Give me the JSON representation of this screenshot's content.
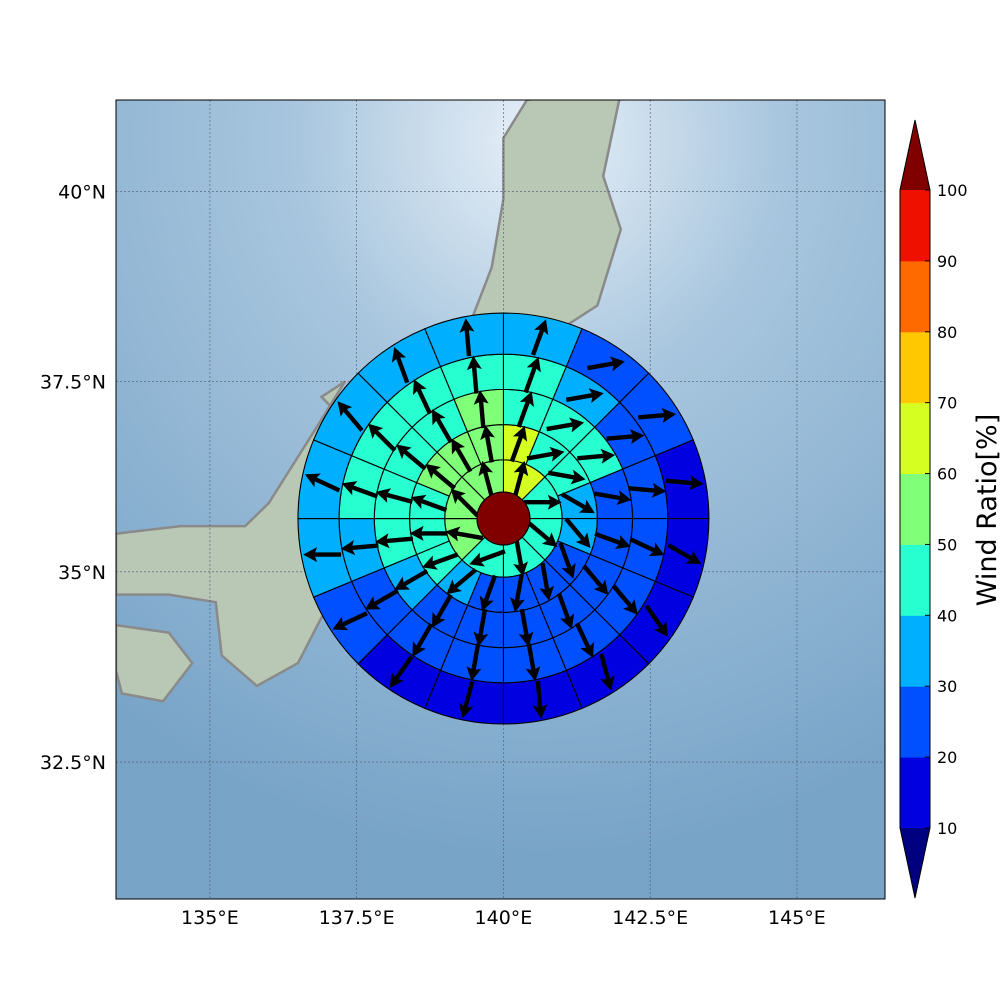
{
  "map": {
    "lat_ticks": [
      "40°N",
      "37.5°N",
      "35°N",
      "32.5°N"
    ],
    "lon_ticks": [
      "135°E",
      "137.5°E",
      "140°E",
      "142.5°E",
      "145°E"
    ],
    "lat_values": [
      40,
      37.5,
      35,
      32.5
    ],
    "lon_values": [
      135,
      137.5,
      140,
      142.5,
      145
    ],
    "extent": {
      "lon": [
        133.4,
        146.5
      ],
      "lat": [
        30.7,
        41.2
      ]
    },
    "center": {
      "lon": 140.0,
      "lat": 35.7
    },
    "ocean_color": "#8cb4d2",
    "land_color": "#b8c8b4",
    "coast_color": "#8a8a8a",
    "center_color": "#800000"
  },
  "colorbar": {
    "label": "Wind Ratio[%]",
    "ticks": [
      "10",
      "20",
      "30",
      "40",
      "50",
      "60",
      "70",
      "80",
      "90",
      "100"
    ],
    "levels": [
      10,
      20,
      30,
      40,
      50,
      60,
      70,
      80,
      90,
      100
    ],
    "colors": [
      "#0000e0",
      "#0050ff",
      "#00b0ff",
      "#28ffd0",
      "#80ff78",
      "#d4ff20",
      "#ffc800",
      "#ff6a00",
      "#f01000"
    ],
    "under_color": "#000080",
    "over_color": "#800000"
  },
  "wind_ratio": {
    "sectors": 16,
    "ring_boundaries_deg": [
      0.45,
      1.0,
      1.6,
      2.2,
      2.8,
      3.5
    ],
    "ring_values": [
      [
        65,
        45,
        45,
        45,
        45,
        45,
        45,
        45,
        45,
        55,
        55,
        55,
        55,
        55,
        55,
        65
      ],
      [
        65,
        45,
        45,
        35,
        35,
        25,
        25,
        25,
        25,
        35,
        45,
        45,
        45,
        55,
        55,
        55
      ],
      [
        45,
        45,
        45,
        25,
        25,
        25,
        25,
        25,
        25,
        25,
        35,
        45,
        45,
        45,
        45,
        55
      ],
      [
        45,
        35,
        25,
        25,
        25,
        25,
        25,
        25,
        25,
        25,
        25,
        35,
        45,
        45,
        45,
        45
      ],
      [
        35,
        25,
        25,
        15,
        15,
        15,
        15,
        15,
        15,
        15,
        25,
        35,
        35,
        35,
        35,
        35
      ]
    ],
    "wind_directions_deg": [
      [
        15,
        90,
        130,
        170,
        250,
        280,
        315,
        345
      ],
      [
        20,
        80,
        100,
        120,
        140,
        160,
        170,
        190,
        200,
        230,
        250,
        270,
        290,
        310,
        330,
        350
      ],
      [
        20,
        80,
        85,
        100,
        110,
        140,
        160,
        170,
        190,
        210,
        240,
        265,
        285,
        310,
        330,
        355
      ],
      [
        20,
        80,
        85,
        95,
        115,
        140,
        155,
        170,
        190,
        210,
        240,
        265,
        290,
        315,
        335,
        355
      ],
      [
        20,
        80,
        85,
        95,
        120,
        145,
        165,
        175,
        195,
        215,
        245,
        270,
        295,
        320,
        340,
        355
      ]
    ]
  }
}
